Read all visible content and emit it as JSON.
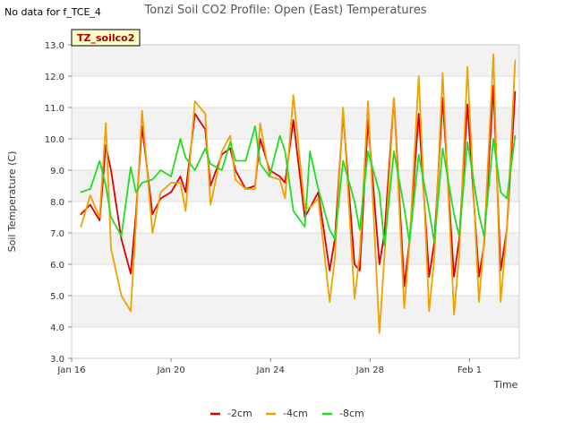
{
  "page": {
    "no_data_note": "No data for f_TCE_4"
  },
  "chart_data": {
    "type": "line",
    "title": "Tonzi Soil CO2 Profile: Open (East) Temperatures",
    "xlabel": "Time",
    "ylabel": "Soil Temperature (C)",
    "tag_label": "TZ_soilco2",
    "ylim": [
      3.0,
      13.0
    ],
    "y_ticks": [
      3.0,
      4.0,
      5.0,
      6.0,
      7.0,
      8.0,
      9.0,
      10.0,
      11.0,
      12.0,
      13.0
    ],
    "y_tick_labels": [
      "3.0",
      "4.0",
      "5.0",
      "6.0",
      "7.0",
      "8.0",
      "9.0",
      "10.0",
      "11.0",
      "12.0",
      "13.0"
    ],
    "xlim": [
      "Jan 16",
      "Feb 3"
    ],
    "x_ticks": [
      "Jan 16",
      "Jan 20",
      "Jan 24",
      "Jan 28",
      "Feb 1"
    ],
    "grid": "horizontal bands",
    "legend_position": "bottom-center",
    "colors": {
      "-2cm": "#dd0000",
      "-4cm": "#f0a000",
      "-8cm": "#22dd22",
      "band": "#f2f2f2",
      "tag_bg": "#ffffc8"
    },
    "series": [
      {
        "name": "-2cm",
        "x": [
          "Jan 16 09:00",
          "Jan 16 18:00",
          "Jan 17 03:00",
          "Jan 17 09:00",
          "Jan 17 14:00",
          "Jan 18 00:00",
          "Jan 18 09:00",
          "Jan 18 14:00",
          "Jan 18 20:00",
          "Jan 19 06:00",
          "Jan 19 14:00",
          "Jan 20 00:00",
          "Jan 20 09:00",
          "Jan 20 14:00",
          "Jan 20 23:00",
          "Jan 21 09:00",
          "Jan 21 14:00",
          "Jan 22 01:00",
          "Jan 22 09:00",
          "Jan 22 14:00",
          "Jan 23 00:00",
          "Jan 23 09:00",
          "Jan 23 14:00",
          "Jan 23 23:00",
          "Jan 24 09:00",
          "Jan 24 14:00",
          "Jan 24 22:00",
          "Jan 25 09:00",
          "Jan 25 14:00",
          "Jan 25 22:00",
          "Jan 26 09:00",
          "Jan 26 14:00",
          "Jan 26 22:00",
          "Jan 27 09:00",
          "Jan 27 14:00",
          "Jan 27 22:00",
          "Jan 28 09:00",
          "Jan 28 14:00",
          "Jan 28 23:00",
          "Jan 29 09:00",
          "Jan 29 14:00",
          "Jan 29 23:00",
          "Jan 30 09:00",
          "Jan 30 14:00",
          "Jan 30 22:00",
          "Jan 31 09:00",
          "Jan 31 14:00",
          "Jan 31 22:00",
          "Feb 1 09:00",
          "Feb 1 14:00",
          "Feb 1 23:00",
          "Feb 2 06:00",
          "Feb 2 12:00",
          "Feb 2 20:00"
        ],
        "values": [
          7.6,
          7.9,
          7.4,
          9.8,
          9.0,
          6.8,
          5.7,
          7.6,
          10.4,
          7.6,
          8.1,
          8.3,
          8.8,
          8.3,
          10.8,
          10.3,
          8.5,
          9.5,
          9.7,
          9.0,
          8.4,
          8.5,
          10.0,
          9.0,
          8.8,
          8.6,
          10.6,
          7.5,
          7.8,
          8.3,
          5.8,
          6.8,
          10.8,
          6.0,
          5.8,
          10.6,
          6.0,
          7.0,
          11.3,
          5.3,
          6.7,
          10.8,
          5.6,
          6.7,
          11.3,
          5.6,
          6.8,
          11.1,
          5.6,
          6.6,
          11.7,
          5.8,
          7.1,
          11.5
        ]
      },
      {
        "name": "-4cm",
        "x": [
          "Jan 16 09:00",
          "Jan 16 18:00",
          "Jan 17 03:00",
          "Jan 17 09:00",
          "Jan 17 14:00",
          "Jan 18 00:00",
          "Jan 18 09:00",
          "Jan 18 14:00",
          "Jan 18 20:00",
          "Jan 19 06:00",
          "Jan 19 14:00",
          "Jan 20 00:00",
          "Jan 20 09:00",
          "Jan 20 14:00",
          "Jan 20 23:00",
          "Jan 21 09:00",
          "Jan 21 14:00",
          "Jan 22 01:00",
          "Jan 22 09:00",
          "Jan 22 14:00",
          "Jan 23 00:00",
          "Jan 23 09:00",
          "Jan 23 14:00",
          "Jan 23 23:00",
          "Jan 24 09:00",
          "Jan 24 14:00",
          "Jan 24 22:00",
          "Jan 25 09:00",
          "Jan 25 14:00",
          "Jan 25 22:00",
          "Jan 26 09:00",
          "Jan 26 14:00",
          "Jan 26 22:00",
          "Jan 27 09:00",
          "Jan 27 14:00",
          "Jan 27 22:00",
          "Jan 28 09:00",
          "Jan 28 14:00",
          "Jan 28 23:00",
          "Jan 29 09:00",
          "Jan 29 14:00",
          "Jan 29 23:00",
          "Jan 30 09:00",
          "Jan 30 14:00",
          "Jan 30 22:00",
          "Jan 31 09:00",
          "Jan 31 14:00",
          "Jan 31 22:00",
          "Feb 1 09:00",
          "Feb 1 14:00",
          "Feb 1 23:00",
          "Feb 2 06:00",
          "Feb 2 12:00",
          "Feb 2 20:00"
        ],
        "values": [
          7.2,
          8.2,
          7.5,
          10.5,
          6.5,
          5.0,
          4.5,
          7.3,
          10.9,
          7.0,
          8.3,
          8.6,
          8.6,
          7.7,
          11.2,
          10.8,
          7.9,
          9.6,
          10.1,
          8.7,
          8.4,
          8.4,
          10.5,
          8.8,
          8.7,
          8.1,
          11.4,
          7.8,
          7.8,
          8.1,
          4.8,
          6.2,
          11.0,
          4.9,
          6.3,
          11.2,
          3.8,
          6.3,
          11.3,
          4.6,
          6.6,
          12.0,
          4.5,
          6.2,
          12.1,
          4.4,
          6.3,
          12.3,
          4.8,
          6.7,
          12.7,
          4.8,
          7.1,
          12.5
        ]
      },
      {
        "name": "-8cm",
        "x": [
          "Jan 16 09:00",
          "Jan 16 18:00",
          "Jan 17 03:00",
          "Jan 17 09:00",
          "Jan 17 14:00",
          "Jan 18 00:00",
          "Jan 18 09:00",
          "Jan 18 14:00",
          "Jan 18 20:00",
          "Jan 19 06:00",
          "Jan 19 14:00",
          "Jan 20 00:00",
          "Jan 20 09:00",
          "Jan 20 14:00",
          "Jan 20 23:00",
          "Jan 21 09:00",
          "Jan 21 14:00",
          "Jan 22 01:00",
          "Jan 22 09:00",
          "Jan 22 14:00",
          "Jan 23 00:00",
          "Jan 23 09:00",
          "Jan 23 14:00",
          "Jan 23 23:00",
          "Jan 24 09:00",
          "Jan 24 14:00",
          "Jan 24 22:00",
          "Jan 25 09:00",
          "Jan 25 14:00",
          "Jan 25 22:00",
          "Jan 26 09:00",
          "Jan 26 14:00",
          "Jan 26 22:00",
          "Jan 27 09:00",
          "Jan 27 14:00",
          "Jan 27 22:00",
          "Jan 28 09:00",
          "Jan 28 14:00",
          "Jan 28 23:00",
          "Jan 29 09:00",
          "Jan 29 14:00",
          "Jan 29 23:00",
          "Jan 30 09:00",
          "Jan 30 14:00",
          "Jan 30 22:00",
          "Jan 31 09:00",
          "Jan 31 14:00",
          "Jan 31 22:00",
          "Feb 1 09:00",
          "Feb 1 14:00",
          "Feb 1 23:00",
          "Feb 2 06:00",
          "Feb 2 12:00",
          "Feb 2 20:00"
        ],
        "values": [
          8.3,
          8.4,
          9.3,
          8.5,
          7.5,
          6.9,
          9.1,
          8.3,
          8.6,
          8.7,
          9.0,
          8.8,
          10.0,
          9.4,
          9.0,
          9.7,
          9.2,
          9.0,
          9.9,
          9.3,
          9.3,
          10.4,
          9.2,
          8.8,
          10.1,
          9.6,
          7.7,
          7.2,
          9.6,
          8.4,
          7.1,
          6.8,
          9.3,
          8.0,
          7.1,
          9.6,
          8.3,
          6.6,
          9.6,
          7.8,
          6.7,
          9.5,
          7.7,
          6.7,
          9.7,
          7.6,
          6.9,
          9.9,
          7.6,
          6.9,
          10.0,
          8.3,
          8.1,
          10.1
        ]
      }
    ]
  }
}
